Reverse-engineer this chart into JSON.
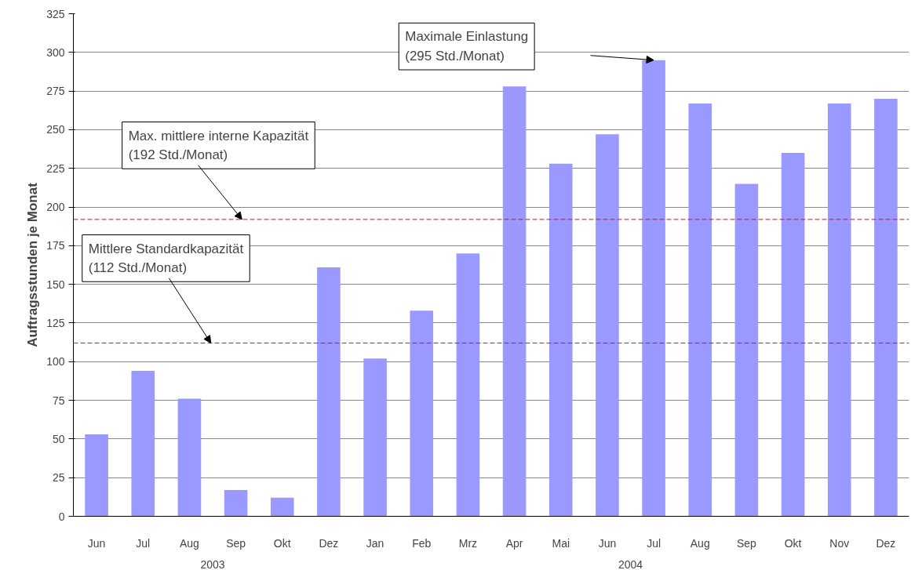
{
  "chart_data": {
    "type": "bar",
    "ylabel": "Auftragsstunden je Monat",
    "categories": [
      "Jun",
      "Jul",
      "Aug",
      "Sep",
      "Okt",
      "Dez",
      "Jan",
      "Feb",
      "Mrz",
      "Apr",
      "Mai",
      "Jun",
      "Jul",
      "Aug",
      "Sep",
      "Okt",
      "Nov",
      "Dez"
    ],
    "values": [
      53,
      94,
      76,
      17,
      12,
      161,
      102,
      133,
      170,
      278,
      228,
      247,
      295,
      267,
      215,
      235,
      267,
      270
    ],
    "color": "#9999ff",
    "ylim": [
      0,
      325
    ],
    "yticks": [
      0,
      25,
      50,
      75,
      100,
      125,
      150,
      175,
      200,
      225,
      250,
      275,
      300,
      325
    ],
    "grid": "y",
    "ref_lines": [
      {
        "axis": "y",
        "value": 192,
        "label": "Max. mittlere interne Kapazität\n(192 Std./Monat)",
        "color": "#ff0000",
        "line_style": "dashed"
      },
      {
        "axis": "y",
        "value": 112,
        "label": "Mittlere Standardkapazität\n(112 Std./Monat)",
        "color": "#ff0000",
        "line_style": "dashed"
      }
    ],
    "annotations": [
      "Maximale Einlastung\n(295 Std./Monat)",
      "2003",
      "2004"
    ]
  }
}
